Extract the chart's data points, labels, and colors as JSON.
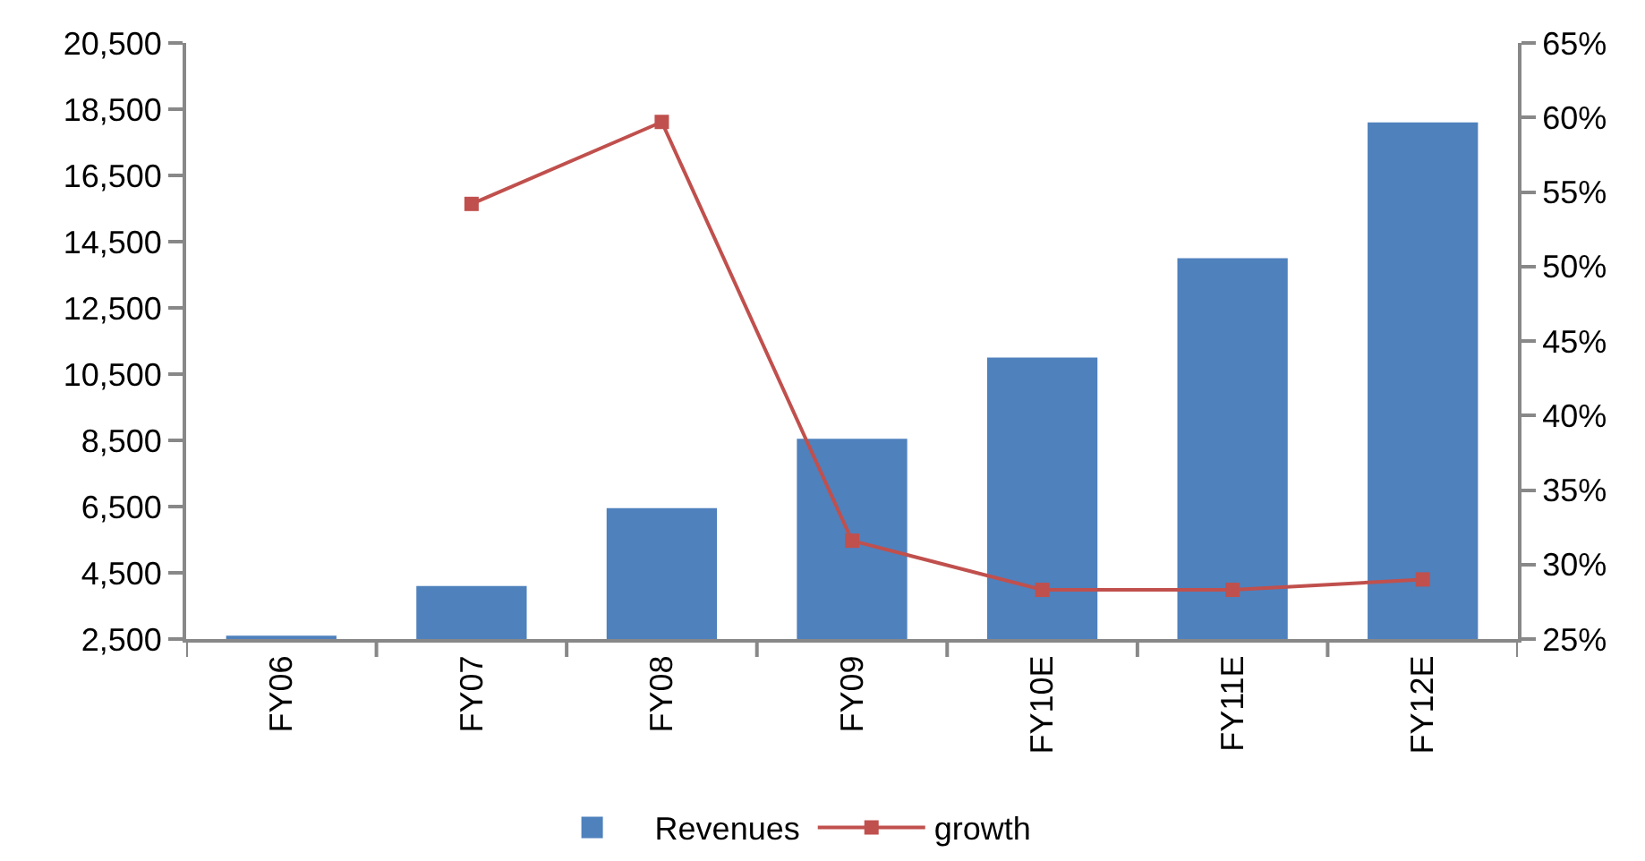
{
  "chart_data": {
    "type": "bar",
    "categories": [
      "FY06",
      "FY07",
      "FY08",
      "FY09",
      "FY10E",
      "FY11E",
      "FY12E"
    ],
    "series": [
      {
        "name": "Revenues",
        "color": "#4f81bd",
        "values": [
          2600,
          4100,
          6450,
          8550,
          11000,
          14000,
          18100
        ]
      },
      {
        "name": "growth",
        "type": "line",
        "axis": "y2",
        "color": "#c0504d",
        "marker": "square",
        "values": [
          null,
          54.2,
          59.7,
          31.6,
          28.3,
          28.3,
          29.0
        ]
      }
    ],
    "ylim": [
      2500,
      20500
    ],
    "yticks": [
      {
        "value": 2500,
        "label": "2,500"
      },
      {
        "value": 4500,
        "label": "4,500"
      },
      {
        "value": 6500,
        "label": "6,500"
      },
      {
        "value": 8500,
        "label": "8,500"
      },
      {
        "value": 10500,
        "label": "10,500"
      },
      {
        "value": 12500,
        "label": "12,500"
      },
      {
        "value": 14500,
        "label": "14,500"
      },
      {
        "value": 16500,
        "label": "16,500"
      },
      {
        "value": 18500,
        "label": "18,500"
      },
      {
        "value": 20500,
        "label": "20,500"
      }
    ],
    "y2lim": [
      25,
      65
    ],
    "y2ticks": [
      {
        "value": 25,
        "label": "25%"
      },
      {
        "value": 30,
        "label": "30%"
      },
      {
        "value": 35,
        "label": "35%"
      },
      {
        "value": 40,
        "label": "40%"
      },
      {
        "value": 45,
        "label": "45%"
      },
      {
        "value": 50,
        "label": "50%"
      },
      {
        "value": 55,
        "label": "55%"
      },
      {
        "value": 60,
        "label": "60%"
      },
      {
        "value": 65,
        "label": "65%"
      }
    ],
    "grid": false,
    "legend": "bottom"
  }
}
